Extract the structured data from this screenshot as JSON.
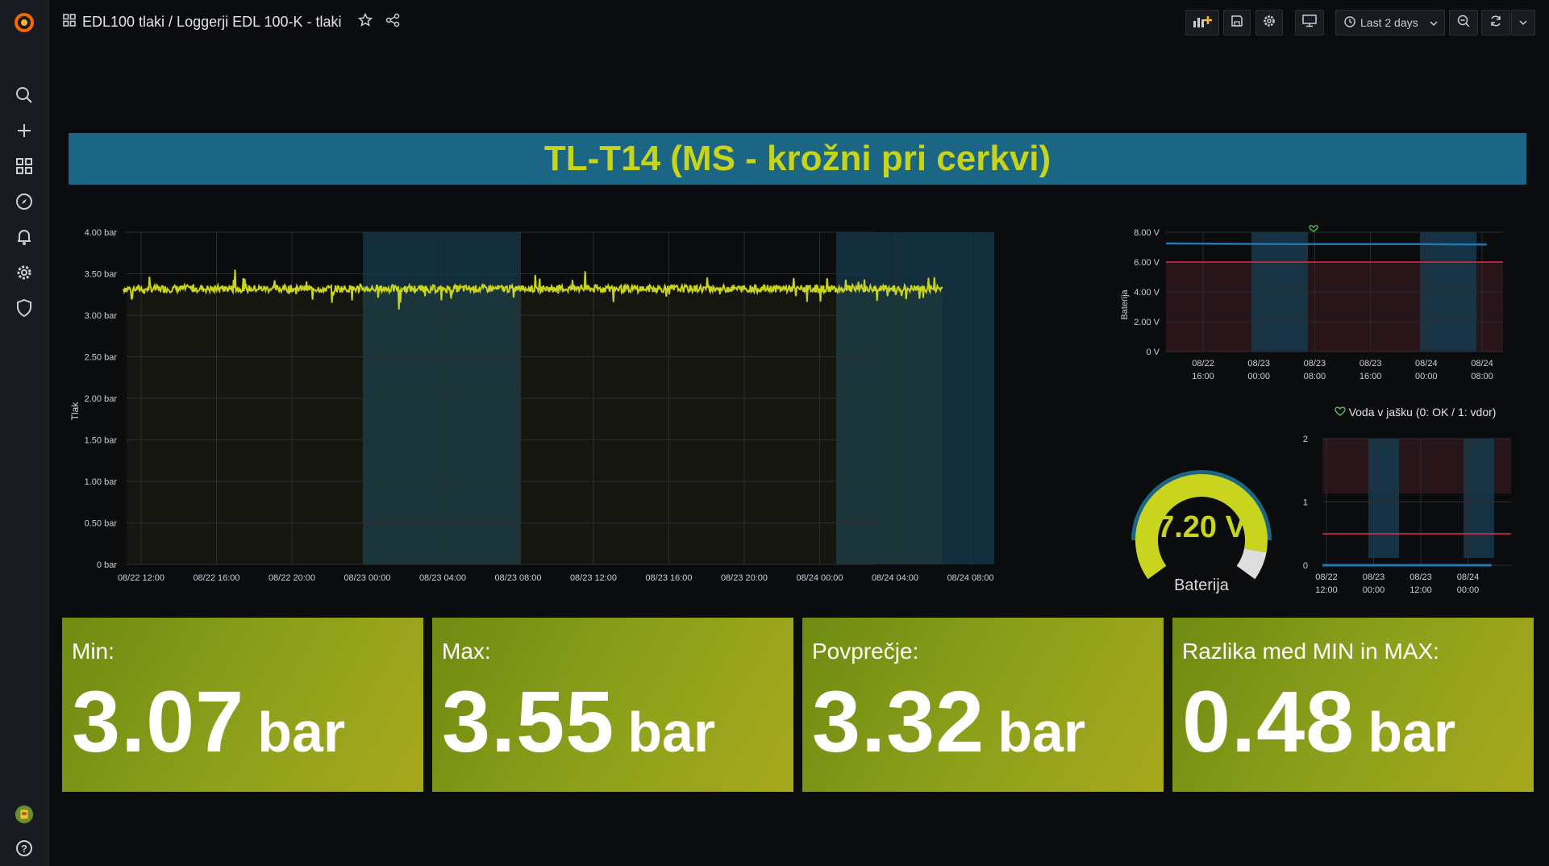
{
  "breadcrumb": "EDL100 tlaki / Loggerji EDL 100-K - tlaki",
  "time_range": "Last 2 days",
  "dashboard_title": "TL-T14 (MS - krožni pri cerkvi)",
  "colors": {
    "line": "#c8d41e",
    "title_bg": "#1b6685",
    "accent": "#c7d418",
    "threshold": "#e02f44"
  },
  "icons": [
    "grafana-logo-icon",
    "search-icon",
    "plus-icon",
    "dashboards-icon",
    "explore-icon",
    "alerting-icon",
    "gear-icon",
    "shield-icon",
    "avatar",
    "help-icon",
    "add-panel-icon",
    "save-icon",
    "settings-icon",
    "tv-icon",
    "clock-icon",
    "zoom-out-icon",
    "refresh-icon",
    "chevron-down-icon",
    "star-icon",
    "share-icon"
  ],
  "charts": {
    "pressure": {
      "ylabel": "Tlak",
      "yticks": [
        "4.00 bar",
        "3.50 bar",
        "3.00 bar",
        "2.50 bar",
        "2.00 bar",
        "1.50 bar",
        "1.00 bar",
        "0.50 bar",
        "0 bar"
      ],
      "xticks": [
        "08/22 12:00",
        "08/22 16:00",
        "08/22 20:00",
        "08/23 00:00",
        "08/23 04:00",
        "08/23 08:00",
        "08/23 12:00",
        "08/23 16:00",
        "08/23 20:00",
        "08/24 00:00",
        "08/24 04:00",
        "08/24 08:00"
      ]
    },
    "battery": {
      "ylabel": "Baterija",
      "yticks": [
        "8.00 V",
        "6.00 V",
        "4.00 V",
        "2.00 V",
        "0 V"
      ],
      "xticks": [
        [
          "08/22",
          "16:00"
        ],
        [
          "08/23",
          "00:00"
        ],
        [
          "08/23",
          "08:00"
        ],
        [
          "08/23",
          "16:00"
        ],
        [
          "08/24",
          "00:00"
        ],
        [
          "08/24",
          "08:00"
        ]
      ]
    },
    "voda": {
      "title": "Voda v jašku (0: OK / 1: vdor)",
      "yticks": [
        "2",
        "1",
        "0"
      ],
      "xticks": [
        [
          "08/22",
          "12:00"
        ],
        [
          "08/23",
          "00:00"
        ],
        [
          "08/23",
          "12:00"
        ],
        [
          "08/24",
          "00:00"
        ]
      ]
    }
  },
  "chart_data": [
    {
      "type": "line",
      "ylabel": "Tlak",
      "ylim": [
        0,
        4
      ],
      "x_range": [
        "08/22 10:30",
        "08/24 09:00"
      ],
      "series": [
        {
          "values_summary": {
            "min": 3.07,
            "max": 3.55,
            "mean": 3.32
          }
        }
      ]
    },
    {
      "type": "line",
      "ylabel": "Baterija",
      "ylim": [
        0,
        8
      ],
      "threshold": 6,
      "series": [
        {
          "values": [
            7.25,
            7.22,
            7.2,
            7.2,
            7.2,
            7.18
          ]
        }
      ]
    },
    {
      "type": "line",
      "title": "Voda v jašku (0: OK / 1: vdor)",
      "ylim": [
        0,
        2
      ],
      "threshold": 0.5,
      "series": [
        {
          "values": [
            0,
            0,
            0,
            0
          ]
        }
      ]
    }
  ],
  "gauge": {
    "value": "7.20 V",
    "label": "Baterija",
    "fill": 0.9
  },
  "stats": [
    {
      "label": "Min:",
      "value": "3.07",
      "unit": "bar"
    },
    {
      "label": "Max:",
      "value": "3.55",
      "unit": "bar"
    },
    {
      "label": "Povprečje:",
      "value": "3.32",
      "unit": "bar"
    },
    {
      "label": "Razlika med MIN in MAX:",
      "value": "0.48",
      "unit": "bar"
    }
  ]
}
